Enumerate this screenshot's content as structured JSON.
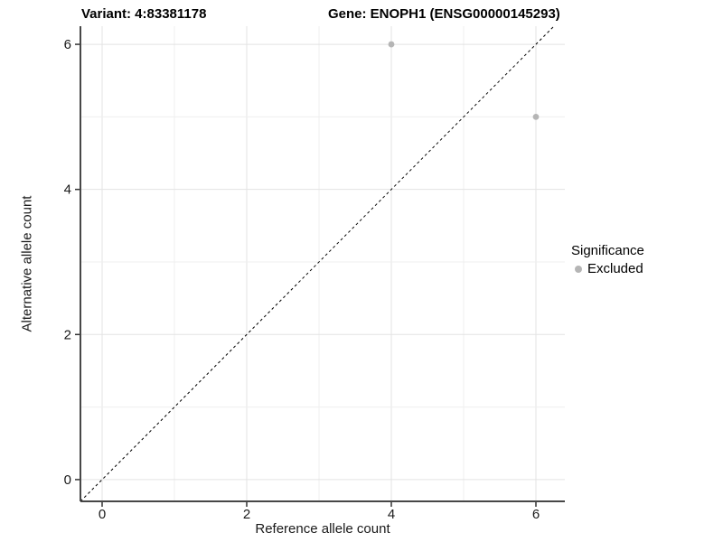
{
  "chart_data": {
    "type": "scatter",
    "title_left": "Variant: 4:83381178",
    "title_right": "Gene: ENOPH1 (ENSG00000145293)",
    "xlabel": "Reference allele count",
    "ylabel": "Alternative allele count",
    "xlim": [
      -0.3,
      6.4
    ],
    "ylim": [
      -0.3,
      6.25
    ],
    "xticks": [
      0,
      2,
      4,
      6
    ],
    "yticks": [
      0,
      2,
      4,
      6
    ],
    "gridlines": {
      "x": [
        0,
        1,
        2,
        3,
        4,
        5,
        6
      ],
      "y": [
        0,
        1,
        2,
        3,
        4,
        5,
        6
      ]
    },
    "grid": true,
    "identity_line": {
      "from": [
        -0.3,
        -0.3
      ],
      "to": [
        6.25,
        6.25
      ],
      "style": "dashed",
      "color": "#000000"
    },
    "series": [
      {
        "name": "Excluded",
        "color": "#b5b5b5",
        "points": [
          [
            4,
            6
          ],
          [
            6,
            5
          ]
        ]
      }
    ],
    "legend": {
      "title": "Significance",
      "position": "right",
      "items": [
        {
          "label": "Excluded",
          "color": "#b5b5b5"
        }
      ]
    },
    "colors": {
      "axis_line": "#474747",
      "tick_mark": "#333333",
      "tick_label": "#1a1a1a",
      "grid_major": "#e3e3e3",
      "grid_minor": "#efefef",
      "background": "#ffffff"
    }
  }
}
